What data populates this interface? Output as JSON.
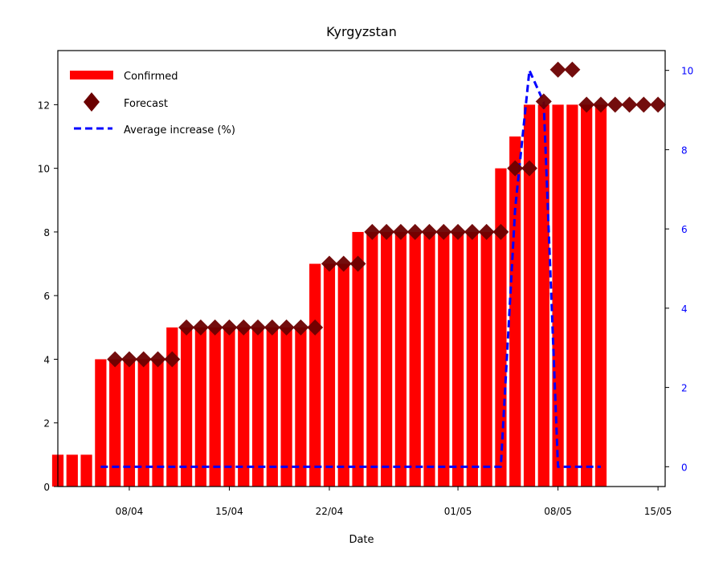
{
  "chart_data": {
    "type": "bar",
    "title": "Kyrgyzstan",
    "xlabel": "Date",
    "ylabel": "",
    "ylabel_right": "",
    "xlim": [
      "2020-04-03",
      "2020-05-15"
    ],
    "ylim": [
      0,
      13.7
    ],
    "ylim_right": [
      -0.5,
      10.5
    ],
    "x_ticks": [
      {
        "date": "2020-04-08",
        "label": "08/04"
      },
      {
        "date": "2020-04-15",
        "label": "15/04"
      },
      {
        "date": "2020-04-22",
        "label": "22/04"
      },
      {
        "date": "2020-05-01",
        "label": "01/05"
      },
      {
        "date": "2020-05-08",
        "label": "08/05"
      },
      {
        "date": "2020-05-15",
        "label": "15/05"
      }
    ],
    "y_ticks": [
      0,
      2,
      4,
      6,
      8,
      10,
      12
    ],
    "y_ticks_right": [
      0,
      2,
      4,
      6,
      8,
      10
    ],
    "grid": false,
    "legend_position": "top-left",
    "colors": {
      "confirmed": "#ff0000",
      "forecast": "#6b0000",
      "average": "#0000ff",
      "right_axis_text": "#0000ff"
    },
    "series": [
      {
        "name": "Confirmed",
        "type": "bar",
        "points": [
          [
            "2020-04-03",
            1
          ],
          [
            "2020-04-04",
            1
          ],
          [
            "2020-04-05",
            1
          ],
          [
            "2020-04-06",
            4
          ],
          [
            "2020-04-07",
            4
          ],
          [
            "2020-04-08",
            4
          ],
          [
            "2020-04-09",
            4
          ],
          [
            "2020-04-10",
            4
          ],
          [
            "2020-04-11",
            5
          ],
          [
            "2020-04-12",
            5
          ],
          [
            "2020-04-13",
            5
          ],
          [
            "2020-04-14",
            5
          ],
          [
            "2020-04-15",
            5
          ],
          [
            "2020-04-16",
            5
          ],
          [
            "2020-04-17",
            5
          ],
          [
            "2020-04-18",
            5
          ],
          [
            "2020-04-19",
            5
          ],
          [
            "2020-04-20",
            5
          ],
          [
            "2020-04-21",
            7
          ],
          [
            "2020-04-22",
            7
          ],
          [
            "2020-04-23",
            7
          ],
          [
            "2020-04-24",
            8
          ],
          [
            "2020-04-25",
            8
          ],
          [
            "2020-04-26",
            8
          ],
          [
            "2020-04-27",
            8
          ],
          [
            "2020-04-28",
            8
          ],
          [
            "2020-04-29",
            8
          ],
          [
            "2020-04-30",
            8
          ],
          [
            "2020-05-01",
            8
          ],
          [
            "2020-05-02",
            8
          ],
          [
            "2020-05-03",
            8
          ],
          [
            "2020-05-04",
            10
          ],
          [
            "2020-05-05",
            11
          ],
          [
            "2020-05-06",
            12
          ],
          [
            "2020-05-07",
            12
          ],
          [
            "2020-05-08",
            12
          ],
          [
            "2020-05-09",
            12
          ],
          [
            "2020-05-10",
            12
          ],
          [
            "2020-05-11",
            12
          ]
        ]
      },
      {
        "name": "Forecast",
        "type": "scatter",
        "points": [
          [
            "2020-04-07",
            4
          ],
          [
            "2020-04-08",
            4
          ],
          [
            "2020-04-09",
            4
          ],
          [
            "2020-04-10",
            4
          ],
          [
            "2020-04-11",
            4
          ],
          [
            "2020-04-12",
            5
          ],
          [
            "2020-04-13",
            5
          ],
          [
            "2020-04-14",
            5
          ],
          [
            "2020-04-15",
            5
          ],
          [
            "2020-04-16",
            5
          ],
          [
            "2020-04-17",
            5
          ],
          [
            "2020-04-18",
            5
          ],
          [
            "2020-04-19",
            5
          ],
          [
            "2020-04-20",
            5
          ],
          [
            "2020-04-21",
            5
          ],
          [
            "2020-04-22",
            7
          ],
          [
            "2020-04-23",
            7
          ],
          [
            "2020-04-24",
            7
          ],
          [
            "2020-04-25",
            8
          ],
          [
            "2020-04-26",
            8
          ],
          [
            "2020-04-27",
            8
          ],
          [
            "2020-04-28",
            8
          ],
          [
            "2020-04-29",
            8
          ],
          [
            "2020-04-30",
            8
          ],
          [
            "2020-05-01",
            8
          ],
          [
            "2020-05-02",
            8
          ],
          [
            "2020-05-03",
            8
          ],
          [
            "2020-05-04",
            8
          ],
          [
            "2020-05-05",
            10
          ],
          [
            "2020-05-06",
            10
          ],
          [
            "2020-05-07",
            12.1
          ],
          [
            "2020-05-08",
            13.1
          ],
          [
            "2020-05-09",
            13.1
          ],
          [
            "2020-05-10",
            12
          ],
          [
            "2020-05-11",
            12
          ],
          [
            "2020-05-12",
            12
          ],
          [
            "2020-05-13",
            12
          ],
          [
            "2020-05-14",
            12
          ],
          [
            "2020-05-15",
            12
          ]
        ]
      },
      {
        "name": "Average increase (%)",
        "type": "line",
        "axis": "right",
        "points": [
          [
            "2020-04-06",
            0
          ],
          [
            "2020-04-07",
            0
          ],
          [
            "2020-04-08",
            0
          ],
          [
            "2020-04-09",
            0
          ],
          [
            "2020-04-10",
            0
          ],
          [
            "2020-04-11",
            0
          ],
          [
            "2020-04-12",
            0
          ],
          [
            "2020-04-13",
            0
          ],
          [
            "2020-04-14",
            0
          ],
          [
            "2020-04-15",
            0
          ],
          [
            "2020-04-16",
            0
          ],
          [
            "2020-04-17",
            0
          ],
          [
            "2020-04-18",
            0
          ],
          [
            "2020-04-19",
            0
          ],
          [
            "2020-04-20",
            0
          ],
          [
            "2020-04-21",
            0
          ],
          [
            "2020-04-22",
            0
          ],
          [
            "2020-04-23",
            0
          ],
          [
            "2020-04-24",
            0
          ],
          [
            "2020-04-25",
            0
          ],
          [
            "2020-04-26",
            0
          ],
          [
            "2020-04-27",
            0
          ],
          [
            "2020-04-28",
            0
          ],
          [
            "2020-04-29",
            0
          ],
          [
            "2020-04-30",
            0
          ],
          [
            "2020-05-01",
            0
          ],
          [
            "2020-05-02",
            0
          ],
          [
            "2020-05-03",
            0
          ],
          [
            "2020-05-04",
            0
          ],
          [
            "2020-05-05",
            6.5
          ],
          [
            "2020-05-06",
            10
          ],
          [
            "2020-05-07",
            9.2
          ],
          [
            "2020-05-08",
            0
          ],
          [
            "2020-05-09",
            0
          ],
          [
            "2020-05-10",
            0
          ],
          [
            "2020-05-11",
            0
          ]
        ]
      }
    ]
  }
}
